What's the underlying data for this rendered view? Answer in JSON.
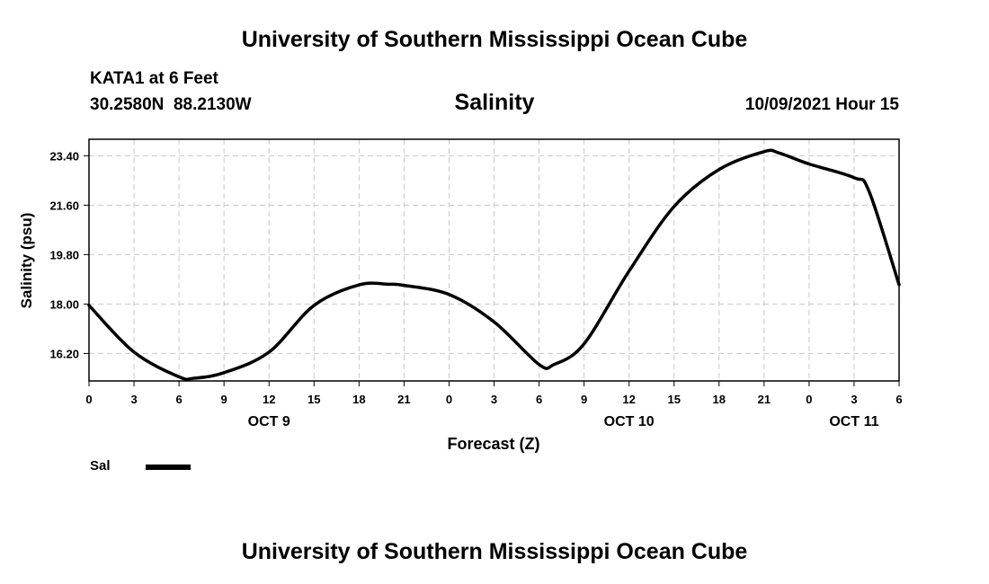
{
  "header": {
    "title": "University of Southern Mississippi Ocean Cube",
    "station": "KATA1 at 6 Feet",
    "coords": "30.2580N  88.2130W",
    "datetime": "10/09/2021 Hour 15"
  },
  "footer": {
    "title": "University of Southern Mississippi Ocean Cube"
  },
  "legend": {
    "label": "Sal"
  },
  "chart_data": {
    "type": "line",
    "title": "Salinity",
    "xlabel": "Forecast (Z)",
    "ylabel": "Salinity (psu)",
    "x_hours": [
      0,
      3,
      6,
      9,
      12,
      15,
      18,
      21,
      24,
      27,
      30,
      33,
      36,
      39,
      42,
      45,
      48,
      51,
      54
    ],
    "x_tick_labels": [
      "0",
      "3",
      "6",
      "9",
      "12",
      "15",
      "18",
      "21",
      "0",
      "3",
      "6",
      "9",
      "12",
      "15",
      "18",
      "21",
      "0",
      "3",
      "6"
    ],
    "date_labels": [
      {
        "label": "OCT 9",
        "hour": 12
      },
      {
        "label": "OCT 10",
        "hour": 36
      },
      {
        "label": "OCT 11",
        "hour": 51
      }
    ],
    "y_ticks": [
      16.2,
      18.0,
      19.8,
      21.6,
      23.4
    ],
    "y_tick_labels": [
      "16.20",
      "18.00",
      "19.80",
      "21.60",
      "23.40"
    ],
    "xlim": [
      0,
      54
    ],
    "ylim": [
      15.2,
      24.0
    ],
    "grid": true,
    "series": [
      {
        "name": "Sal",
        "color": "#000000",
        "x": [
          0,
          3,
          6,
          7,
          9,
          12,
          15,
          18,
          20,
          21,
          24,
          27,
          30,
          31,
          33,
          36,
          39,
          42,
          45,
          46,
          48,
          51,
          52,
          54
        ],
        "y": [
          17.95,
          16.25,
          15.35,
          15.3,
          15.5,
          16.25,
          17.95,
          18.7,
          18.72,
          18.68,
          18.35,
          17.35,
          15.8,
          15.8,
          16.55,
          19.2,
          21.55,
          22.9,
          23.55,
          23.5,
          23.1,
          22.6,
          22.1,
          18.7
        ]
      }
    ]
  }
}
